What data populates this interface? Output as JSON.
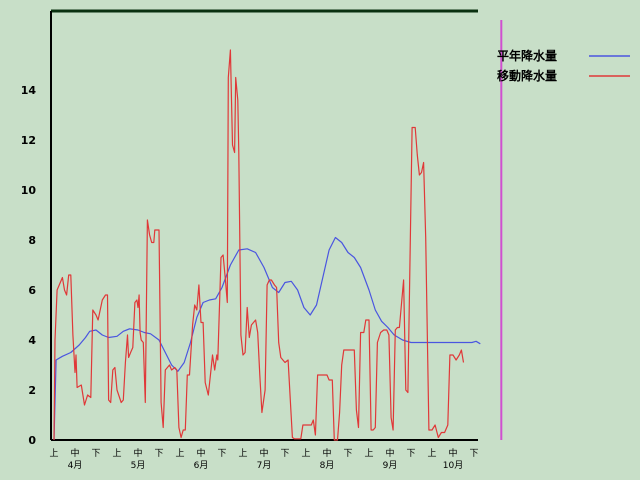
{
  "chart_data": {
    "type": "line",
    "title": "",
    "xlabel": "",
    "ylabel": "",
    "ylim": [
      0,
      16
    ],
    "y_ticks": [
      0,
      2,
      4,
      6,
      8,
      10,
      12,
      14
    ],
    "grid": false,
    "legend_position": "top-right",
    "x_domain": [
      0,
      21.5
    ],
    "x_period_labels": [
      "上",
      "中",
      "下",
      "上",
      "中",
      "下",
      "上",
      "中",
      "下",
      "上",
      "中",
      "下",
      "上",
      "中",
      "下",
      "上",
      "中",
      "下",
      "上",
      "中",
      "下"
    ],
    "x_month_labels": [
      {
        "label": "4月",
        "x": 1
      },
      {
        "label": "5月",
        "x": 4
      },
      {
        "label": "6月",
        "x": 7
      },
      {
        "label": "7月",
        "x": 10
      },
      {
        "label": "8月",
        "x": 13
      },
      {
        "label": "9月",
        "x": 16
      },
      {
        "label": "10月",
        "x": 19
      }
    ],
    "colors": {
      "plot_bg": "#c8dfc8",
      "axis": "#000000",
      "frame_top": "#0a3010",
      "normal": "#4a55e0",
      "moving": "#e03838",
      "marker": "#d050d0"
    },
    "marker_x": 21.3,
    "series": [
      {
        "name": "平年降水量",
        "color": "#4a55e0",
        "points": [
          [
            0,
            0
          ],
          [
            0.1,
            3.2
          ],
          [
            0.4,
            3.35
          ],
          [
            0.8,
            3.5
          ],
          [
            1.2,
            3.8
          ],
          [
            1.5,
            4.1
          ],
          [
            1.7,
            4.35
          ],
          [
            2,
            4.4
          ],
          [
            2.3,
            4.2
          ],
          [
            2.6,
            4.1
          ],
          [
            3,
            4.15
          ],
          [
            3.3,
            4.35
          ],
          [
            3.6,
            4.45
          ],
          [
            4,
            4.4
          ],
          [
            4.3,
            4.3
          ],
          [
            4.6,
            4.25
          ],
          [
            5,
            4.0
          ],
          [
            5.3,
            3.5
          ],
          [
            5.6,
            3.0
          ],
          [
            5.9,
            2.75
          ],
          [
            6.2,
            3.1
          ],
          [
            6.5,
            3.9
          ],
          [
            6.8,
            4.9
          ],
          [
            7.1,
            5.5
          ],
          [
            7.4,
            5.6
          ],
          [
            7.7,
            5.65
          ],
          [
            8,
            6.1
          ],
          [
            8.4,
            7.0
          ],
          [
            8.8,
            7.6
          ],
          [
            9.2,
            7.65
          ],
          [
            9.6,
            7.5
          ],
          [
            10,
            6.9
          ],
          [
            10.4,
            6.1
          ],
          [
            10.7,
            5.9
          ],
          [
            11,
            6.3
          ],
          [
            11.3,
            6.35
          ],
          [
            11.6,
            6.0
          ],
          [
            11.9,
            5.3
          ],
          [
            12.2,
            5.0
          ],
          [
            12.5,
            5.4
          ],
          [
            12.8,
            6.5
          ],
          [
            13.1,
            7.6
          ],
          [
            13.4,
            8.1
          ],
          [
            13.7,
            7.9
          ],
          [
            14,
            7.5
          ],
          [
            14.3,
            7.3
          ],
          [
            14.6,
            6.9
          ],
          [
            15,
            6.0
          ],
          [
            15.3,
            5.2
          ],
          [
            15.6,
            4.75
          ],
          [
            15.9,
            4.5
          ],
          [
            16.2,
            4.2
          ],
          [
            16.6,
            4.0
          ],
          [
            17,
            3.9
          ],
          [
            18,
            3.9
          ],
          [
            19.9,
            3.9
          ],
          [
            20.1,
            3.95
          ],
          [
            20.3,
            3.85
          ]
        ]
      },
      {
        "name": "移動降水量",
        "color": "#e03838",
        "points": [
          [
            0,
            0
          ],
          [
            0.05,
            4.0
          ],
          [
            0.15,
            6.0
          ],
          [
            0.3,
            6.3
          ],
          [
            0.4,
            6.5
          ],
          [
            0.5,
            6.0
          ],
          [
            0.6,
            5.8
          ],
          [
            0.7,
            6.6
          ],
          [
            0.8,
            6.6
          ],
          [
            0.9,
            4.2
          ],
          [
            1.0,
            2.7
          ],
          [
            1.05,
            3.4
          ],
          [
            1.1,
            2.1
          ],
          [
            1.3,
            2.2
          ],
          [
            1.45,
            1.4
          ],
          [
            1.6,
            1.8
          ],
          [
            1.75,
            1.7
          ],
          [
            1.85,
            5.2
          ],
          [
            2.0,
            5.0
          ],
          [
            2.1,
            4.8
          ],
          [
            2.3,
            5.6
          ],
          [
            2.45,
            5.8
          ],
          [
            2.55,
            5.8
          ],
          [
            2.6,
            1.6
          ],
          [
            2.7,
            1.5
          ],
          [
            2.8,
            2.8
          ],
          [
            2.9,
            2.9
          ],
          [
            3.0,
            2.0
          ],
          [
            3.2,
            1.5
          ],
          [
            3.3,
            1.6
          ],
          [
            3.4,
            3.1
          ],
          [
            3.5,
            4.2
          ],
          [
            3.55,
            3.3
          ],
          [
            3.65,
            3.5
          ],
          [
            3.75,
            3.7
          ],
          [
            3.85,
            5.5
          ],
          [
            3.95,
            5.6
          ],
          [
            4.0,
            5.3
          ],
          [
            4.05,
            5.8
          ],
          [
            4.1,
            4.3
          ],
          [
            4.15,
            4.0
          ],
          [
            4.25,
            3.9
          ],
          [
            4.35,
            1.5
          ],
          [
            4.45,
            8.8
          ],
          [
            4.55,
            8.2
          ],
          [
            4.65,
            7.9
          ],
          [
            4.75,
            7.9
          ],
          [
            4.8,
            8.4
          ],
          [
            5.0,
            8.4
          ],
          [
            5.1,
            1.5
          ],
          [
            5.2,
            0.5
          ],
          [
            5.3,
            2.8
          ],
          [
            5.4,
            2.9
          ],
          [
            5.5,
            3.0
          ],
          [
            5.6,
            2.8
          ],
          [
            5.75,
            2.9
          ],
          [
            5.85,
            2.8
          ],
          [
            5.95,
            0.5
          ],
          [
            6.05,
            0.1
          ],
          [
            6.15,
            0.4
          ],
          [
            6.25,
            0.4
          ],
          [
            6.35,
            2.6
          ],
          [
            6.45,
            2.6
          ],
          [
            6.6,
            4.6
          ],
          [
            6.7,
            5.4
          ],
          [
            6.8,
            5.2
          ],
          [
            6.9,
            6.2
          ],
          [
            7.0,
            4.7
          ],
          [
            7.1,
            4.7
          ],
          [
            7.2,
            2.3
          ],
          [
            7.35,
            1.8
          ],
          [
            7.5,
            3.0
          ],
          [
            7.55,
            3.4
          ],
          [
            7.65,
            2.8
          ],
          [
            7.75,
            3.4
          ],
          [
            7.8,
            3.2
          ],
          [
            7.95,
            7.3
          ],
          [
            8.05,
            7.4
          ],
          [
            8.15,
            6.5
          ],
          [
            8.25,
            5.5
          ],
          [
            8.3,
            14.5
          ],
          [
            8.4,
            15.6
          ],
          [
            8.5,
            11.8
          ],
          [
            8.6,
            11.5
          ],
          [
            8.65,
            14.5
          ],
          [
            8.75,
            13.6
          ],
          [
            8.8,
            11.5
          ],
          [
            8.9,
            4.2
          ],
          [
            9.0,
            3.4
          ],
          [
            9.1,
            3.5
          ],
          [
            9.2,
            5.3
          ],
          [
            9.3,
            4.1
          ],
          [
            9.4,
            4.6
          ],
          [
            9.5,
            4.7
          ],
          [
            9.6,
            4.8
          ],
          [
            9.7,
            4.3
          ],
          [
            9.8,
            2.6
          ],
          [
            9.9,
            1.1
          ],
          [
            10.05,
            2.0
          ],
          [
            10.15,
            6.2
          ],
          [
            10.25,
            6.4
          ],
          [
            10.35,
            6.4
          ],
          [
            10.5,
            6.2
          ],
          [
            10.6,
            6.1
          ],
          [
            10.7,
            3.9
          ],
          [
            10.8,
            3.3
          ],
          [
            11.0,
            3.1
          ],
          [
            11.15,
            3.2
          ],
          [
            11.25,
            1.6
          ],
          [
            11.35,
            0.1
          ],
          [
            11.45,
            0.05
          ],
          [
            11.6,
            0.05
          ],
          [
            11.75,
            0.05
          ],
          [
            11.85,
            0.6
          ],
          [
            12.0,
            0.6
          ],
          [
            12.15,
            0.6
          ],
          [
            12.25,
            0.6
          ],
          [
            12.35,
            0.8
          ],
          [
            12.45,
            0.2
          ],
          [
            12.55,
            2.6
          ],
          [
            12.65,
            2.6
          ],
          [
            13.0,
            2.6
          ],
          [
            13.1,
            2.4
          ],
          [
            13.25,
            2.4
          ],
          [
            13.35,
            0.0
          ],
          [
            13.5,
            0.0
          ],
          [
            13.6,
            1.1
          ],
          [
            13.7,
            3.0
          ],
          [
            13.8,
            3.6
          ],
          [
            14.0,
            3.6
          ],
          [
            14.3,
            3.6
          ],
          [
            14.4,
            1.2
          ],
          [
            14.5,
            0.5
          ],
          [
            14.6,
            4.3
          ],
          [
            14.75,
            4.3
          ],
          [
            14.85,
            4.8
          ],
          [
            15.0,
            4.8
          ],
          [
            15.1,
            0.4
          ],
          [
            15.2,
            0.4
          ],
          [
            15.3,
            0.5
          ],
          [
            15.4,
            3.9
          ],
          [
            15.55,
            4.3
          ],
          [
            15.7,
            4.4
          ],
          [
            15.85,
            4.4
          ],
          [
            15.95,
            4.2
          ],
          [
            16.05,
            0.9
          ],
          [
            16.15,
            0.4
          ],
          [
            16.25,
            4.4
          ],
          [
            16.35,
            4.5
          ],
          [
            16.45,
            4.5
          ],
          [
            16.55,
            5.5
          ],
          [
            16.65,
            6.4
          ],
          [
            16.75,
            2.0
          ],
          [
            16.85,
            1.9
          ],
          [
            17.05,
            12.5
          ],
          [
            17.2,
            12.5
          ],
          [
            17.3,
            11.4
          ],
          [
            17.4,
            10.6
          ],
          [
            17.5,
            10.7
          ],
          [
            17.6,
            11.1
          ],
          [
            17.7,
            8.1
          ],
          [
            17.85,
            0.4
          ],
          [
            18.0,
            0.4
          ],
          [
            18.15,
            0.6
          ],
          [
            18.3,
            0.1
          ],
          [
            18.45,
            0.3
          ],
          [
            18.6,
            0.3
          ],
          [
            18.75,
            0.6
          ],
          [
            18.85,
            3.4
          ],
          [
            19.0,
            3.4
          ],
          [
            19.15,
            3.2
          ],
          [
            19.3,
            3.4
          ],
          [
            19.4,
            3.6
          ],
          [
            19.5,
            3.1
          ]
        ]
      }
    ]
  }
}
